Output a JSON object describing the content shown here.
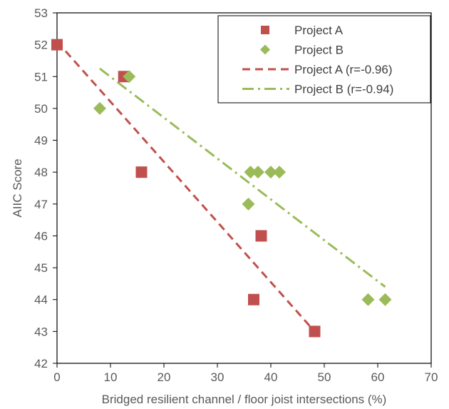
{
  "chart_data": {
    "type": "scatter",
    "xlabel": "Bridged resilient channel / floor joist intersections (%)",
    "ylabel": "AIIC Score",
    "xlim": [
      0,
      70
    ],
    "ylim": [
      42,
      53
    ],
    "x_ticks": [
      0,
      10,
      20,
      30,
      40,
      50,
      60,
      70
    ],
    "y_ticks": [
      42,
      43,
      44,
      45,
      46,
      47,
      48,
      49,
      50,
      51,
      52,
      53
    ],
    "grid": false,
    "legend_position": "top-right",
    "series": [
      {
        "name": "Project A",
        "marker": "square",
        "color": "#C0504D",
        "points": [
          [
            0,
            52
          ],
          [
            12.5,
            51
          ],
          [
            15.8,
            48
          ],
          [
            38.2,
            46
          ],
          [
            36.8,
            44
          ],
          [
            48.2,
            43
          ]
        ]
      },
      {
        "name": "Project B",
        "marker": "diamond",
        "color": "#9BBB59",
        "points": [
          [
            8,
            50
          ],
          [
            13.5,
            51
          ],
          [
            35.8,
            47
          ],
          [
            36.2,
            48
          ],
          [
            37.6,
            48
          ],
          [
            40,
            48
          ],
          [
            41.6,
            48
          ],
          [
            58.2,
            44
          ],
          [
            61.4,
            44
          ]
        ]
      }
    ],
    "trendlines": [
      {
        "name": "Project A (r=-0.96)",
        "style": "dashed",
        "color": "#C0504D",
        "from": [
          0,
          52.1
        ],
        "to": [
          48.2,
          43
        ]
      },
      {
        "name": "Project B (r=-0.94)",
        "style": "dash-dot",
        "color": "#9BBB59",
        "from": [
          8,
          51.25
        ],
        "to": [
          61.4,
          44.4
        ]
      }
    ]
  }
}
